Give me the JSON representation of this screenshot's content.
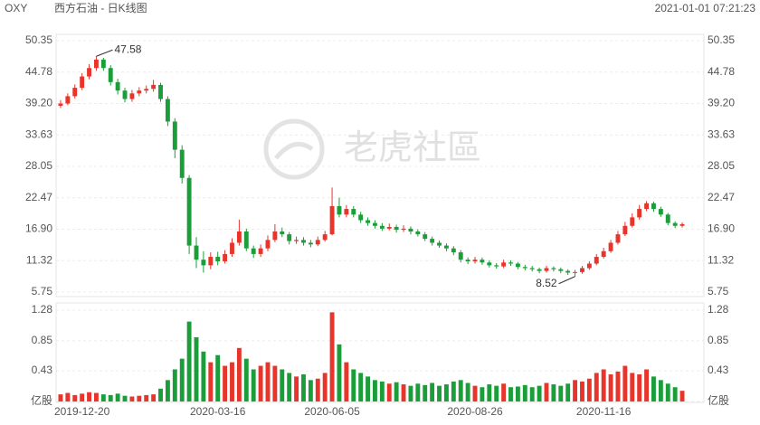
{
  "chart_data": {
    "type": "candlestick",
    "symbol": "OXY",
    "title": "西方石油 - 日K线图",
    "timestamp": "2021-01-01 07:21:23",
    "watermark": "老虎社區",
    "categories": [
      null,
      null,
      null,
      "2019-12-20",
      null,
      null,
      null,
      null,
      null,
      null,
      null,
      null,
      null,
      null,
      null,
      null,
      null,
      null,
      null,
      null,
      null,
      null,
      "2020-03-16",
      null,
      null,
      null,
      null,
      null,
      null,
      null,
      null,
      null,
      null,
      null,
      null,
      null,
      null,
      null,
      "2020-06-05",
      null,
      null,
      null,
      null,
      null,
      null,
      null,
      null,
      null,
      null,
      null,
      null,
      null,
      null,
      null,
      null,
      null,
      null,
      null,
      "2020-08-26",
      null,
      null,
      null,
      null,
      null,
      null,
      null,
      null,
      null,
      null,
      null,
      null,
      null,
      null,
      null,
      null,
      null,
      "2020-11-16",
      null,
      null,
      null,
      null,
      null,
      null,
      null,
      null,
      null,
      null,
      null
    ],
    "open": [
      38.8,
      39.2,
      40.5,
      42,
      44,
      45.5,
      47,
      45.5,
      43,
      41.5,
      40,
      41,
      41.5,
      41.8,
      42.5,
      40,
      36,
      31,
      26,
      14,
      11.5,
      10.5,
      12,
      11.2,
      12.5,
      14.5,
      16.5,
      13.5,
      12.5,
      13.5,
      15,
      16.5,
      16,
      14.8,
      15,
      14.5,
      14.2,
      15,
      16,
      21,
      19.5,
      20.5,
      19.5,
      18.5,
      18,
      17.5,
      17,
      17.3,
      16.8,
      17,
      16.5,
      16,
      15.2,
      14.5,
      14,
      13.5,
      12.8,
      11.5,
      11.2,
      11.5,
      11,
      10.5,
      10.3,
      11,
      10.8,
      10.2,
      10,
      9.8,
      9.5,
      10,
      9.8,
      9.5,
      9.2,
      9.3,
      10,
      10.8,
      12,
      13,
      14.5,
      16,
      17.5,
      19,
      20.5,
      21.5,
      20.5,
      19.5,
      18,
      17.5
    ],
    "high": [
      39.8,
      41.0,
      42.6,
      44.6,
      46.2,
      47.58,
      47.3,
      46.0,
      43.6,
      42.0,
      41.6,
      42.1,
      42.4,
      43.4,
      42.9,
      40.5,
      36.6,
      31.8,
      26.5,
      15.5,
      13.0,
      12.8,
      12.9,
      13.2,
      15.3,
      18.6,
      17.0,
      14.0,
      14.2,
      15.8,
      17.8,
      17.2,
      16.4,
      15.6,
      15.5,
      15.0,
      15.6,
      16.6,
      24.3,
      22.5,
      21.2,
      21.0,
      20.0,
      19.0,
      18.5,
      18.0,
      17.9,
      17.7,
      17.6,
      17.4,
      16.9,
      16.4,
      15.6,
      14.9,
      14.4,
      13.9,
      13.2,
      11.9,
      12.0,
      11.9,
      11.4,
      10.9,
      11.5,
      11.4,
      11.1,
      10.6,
      10.4,
      10.1,
      10.4,
      10.3,
      10.1,
      9.8,
      9.7,
      10.4,
      11.2,
      12.5,
      13.6,
      15.0,
      16.6,
      18.2,
      19.7,
      21.2,
      21.9,
      21.8,
      20.9,
      19.8,
      18.3,
      18.1
    ],
    "low": [
      38.4,
      38.9,
      40.1,
      41.6,
      43.5,
      45.0,
      45.0,
      42.4,
      40.8,
      39.4,
      39.5,
      40.5,
      41.0,
      41.3,
      39.5,
      35.2,
      29.5,
      25.0,
      12.5,
      10.0,
      9.2,
      9.8,
      10.5,
      10.8,
      12.0,
      14.0,
      13.0,
      11.8,
      12.0,
      13.0,
      14.6,
      15.5,
      14.2,
      14.3,
      14.0,
      13.7,
      13.9,
      14.7,
      15.8,
      19.0,
      19.0,
      19.0,
      18.0,
      17.5,
      17.0,
      16.6,
      16.7,
      16.3,
      16.4,
      16.0,
      15.6,
      14.8,
      14.0,
      13.6,
      13.0,
      12.3,
      11.0,
      10.7,
      10.8,
      10.6,
      10.1,
      9.9,
      10.0,
      10.4,
      9.8,
      9.6,
      9.4,
      9.1,
      9.2,
      9.4,
      9.1,
      8.8,
      8.52,
      9.0,
      9.7,
      10.5,
      11.7,
      12.7,
      14.2,
      15.7,
      17.2,
      18.6,
      20.1,
      20.0,
      19.1,
      17.6,
      17.1,
      17.2
    ],
    "close": [
      39.2,
      40.5,
      42,
      44,
      45.5,
      47,
      45.5,
      43,
      41.5,
      40,
      41,
      41.5,
      41.8,
      42.5,
      40,
      36,
      31,
      26,
      14,
      11.5,
      10.5,
      12,
      11.2,
      12.5,
      14.5,
      16.5,
      13.5,
      12.5,
      13.5,
      15,
      16.5,
      16,
      14.8,
      15,
      14.5,
      14.2,
      15,
      16,
      21,
      19.5,
      20.5,
      19.5,
      18.5,
      18,
      17.5,
      17,
      17.3,
      16.8,
      17,
      16.5,
      16,
      15.2,
      14.5,
      14,
      13.5,
      12.8,
      11.5,
      11.2,
      11.5,
      11,
      10.5,
      10.3,
      11,
      10.8,
      10.2,
      10,
      9.8,
      9.5,
      10,
      9.8,
      9.5,
      9.2,
      9.3,
      10,
      10.8,
      12,
      13,
      14.5,
      16,
      17.5,
      19,
      20.5,
      21.5,
      20.5,
      19.5,
      18,
      17.5,
      17.8
    ],
    "volume": [
      0.1,
      0.12,
      0.09,
      0.11,
      0.13,
      0.12,
      0.1,
      0.09,
      0.11,
      0.08,
      0.07,
      0.08,
      0.09,
      0.1,
      0.18,
      0.3,
      0.45,
      0.6,
      1.12,
      0.9,
      0.7,
      0.55,
      0.65,
      0.5,
      0.55,
      0.75,
      0.6,
      0.45,
      0.5,
      0.55,
      0.5,
      0.45,
      0.4,
      0.35,
      0.38,
      0.3,
      0.32,
      0.4,
      1.25,
      0.8,
      0.55,
      0.45,
      0.4,
      0.35,
      0.3,
      0.28,
      0.25,
      0.27,
      0.24,
      0.22,
      0.25,
      0.23,
      0.26,
      0.22,
      0.24,
      0.28,
      0.3,
      0.26,
      0.22,
      0.2,
      0.24,
      0.22,
      0.25,
      0.2,
      0.21,
      0.23,
      0.2,
      0.22,
      0.26,
      0.24,
      0.22,
      0.25,
      0.3,
      0.28,
      0.32,
      0.4,
      0.45,
      0.38,
      0.42,
      0.5,
      0.4,
      0.38,
      0.45,
      0.35,
      0.3,
      0.25,
      0.2,
      0.15
    ],
    "up_color": "#e8352b",
    "down_color": "#1b9e3a",
    "ylim": [
      5.75,
      50.35
    ],
    "yticks": [
      5.75,
      11.32,
      {
        "value": 16.9,
        "label": "16.90"
      },
      22.47,
      28.05,
      33.63,
      {
        "value": 39.2,
        "label": "39.20"
      },
      44.78,
      50.35
    ],
    "volume_ylim": [
      0,
      1.28
    ],
    "volume_yticks": [
      {
        "value": 0,
        "label": "亿股"
      },
      0.43,
      0.85,
      1.28
    ],
    "grid": true
  }
}
